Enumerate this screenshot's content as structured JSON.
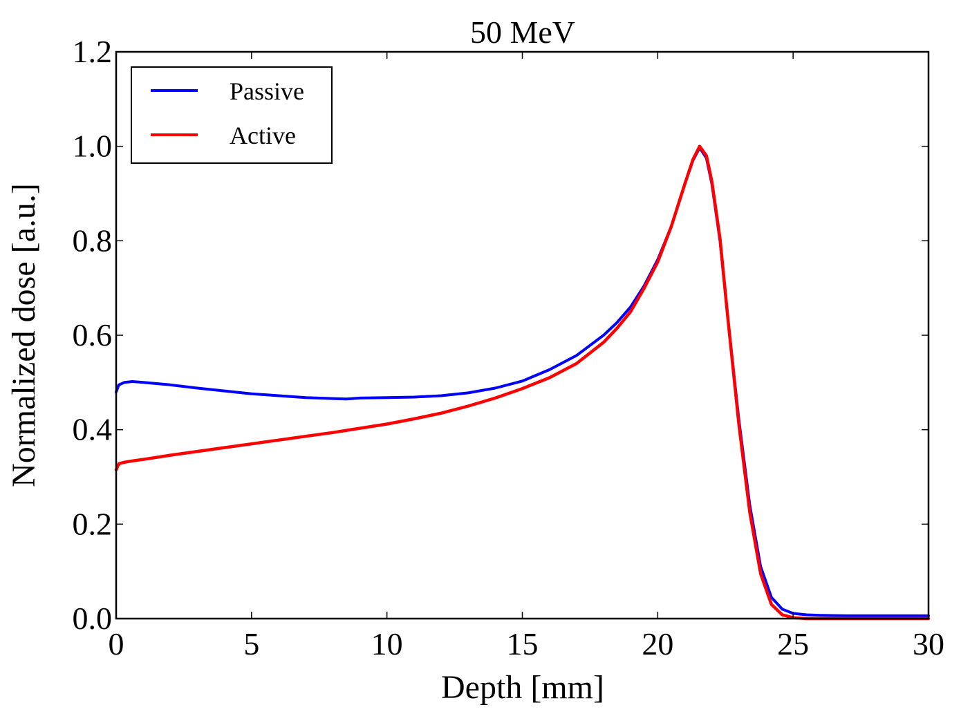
{
  "chart_data": {
    "type": "line",
    "title": "50 MeV",
    "xlabel": "Depth [mm]",
    "ylabel": "Normalized dose [a.u.]",
    "xlim": [
      0,
      30
    ],
    "ylim": [
      0.0,
      1.2
    ],
    "xticks": [
      "0",
      "5",
      "10",
      "15",
      "20",
      "25",
      "30"
    ],
    "xtick_values": [
      0,
      5,
      10,
      15,
      20,
      25,
      30
    ],
    "yticks": [
      "0.0",
      "0.2",
      "0.4",
      "0.6",
      "0.8",
      "1.0",
      "1.2"
    ],
    "ytick_values": [
      0.0,
      0.2,
      0.4,
      0.6,
      0.8,
      1.0,
      1.2
    ],
    "grid": false,
    "legend_position": "top-left",
    "series": [
      {
        "name": "Passive",
        "color": "#0000ff",
        "x": [
          0.0,
          0.1,
          0.3,
          0.6,
          1.0,
          2.0,
          3.0,
          4.0,
          5.0,
          6.0,
          7.0,
          8.0,
          8.5,
          9.0,
          10.0,
          11.0,
          12.0,
          13.0,
          14.0,
          15.0,
          16.0,
          17.0,
          18.0,
          18.5,
          19.0,
          19.5,
          20.0,
          20.5,
          21.0,
          21.3,
          21.55,
          21.8,
          22.0,
          22.3,
          22.6,
          23.0,
          23.4,
          23.8,
          24.2,
          24.6,
          25.0,
          25.5,
          26.0,
          27.0,
          28.0,
          29.0,
          30.0
        ],
        "y": [
          0.48,
          0.495,
          0.5,
          0.502,
          0.5,
          0.495,
          0.488,
          0.482,
          0.476,
          0.472,
          0.468,
          0.466,
          0.465,
          0.467,
          0.468,
          0.469,
          0.472,
          0.478,
          0.488,
          0.503,
          0.527,
          0.557,
          0.6,
          0.627,
          0.66,
          0.705,
          0.76,
          0.83,
          0.92,
          0.97,
          0.997,
          0.975,
          0.92,
          0.8,
          0.63,
          0.42,
          0.24,
          0.11,
          0.045,
          0.02,
          0.011,
          0.008,
          0.007,
          0.006,
          0.006,
          0.006,
          0.006
        ]
      },
      {
        "name": "Active",
        "color": "#ff0000",
        "x": [
          0.0,
          0.1,
          0.3,
          0.6,
          1.0,
          2.0,
          3.0,
          4.0,
          5.0,
          6.0,
          7.0,
          8.0,
          9.0,
          10.0,
          11.0,
          12.0,
          13.0,
          14.0,
          15.0,
          16.0,
          17.0,
          18.0,
          18.5,
          19.0,
          19.5,
          20.0,
          20.5,
          21.0,
          21.3,
          21.55,
          21.8,
          22.0,
          22.3,
          22.6,
          23.0,
          23.4,
          23.8,
          24.2,
          24.6,
          25.0,
          25.5,
          26.0,
          27.0,
          28.0,
          29.0,
          30.0
        ],
        "y": [
          0.315,
          0.328,
          0.331,
          0.334,
          0.337,
          0.346,
          0.354,
          0.362,
          0.37,
          0.378,
          0.386,
          0.394,
          0.403,
          0.412,
          0.423,
          0.435,
          0.45,
          0.467,
          0.487,
          0.51,
          0.54,
          0.585,
          0.615,
          0.65,
          0.7,
          0.755,
          0.83,
          0.92,
          0.972,
          1.0,
          0.98,
          0.925,
          0.805,
          0.63,
          0.41,
          0.225,
          0.095,
          0.03,
          0.008,
          0.002,
          0.0,
          0.0,
          0.0,
          0.0,
          0.0,
          0.0
        ]
      }
    ]
  }
}
